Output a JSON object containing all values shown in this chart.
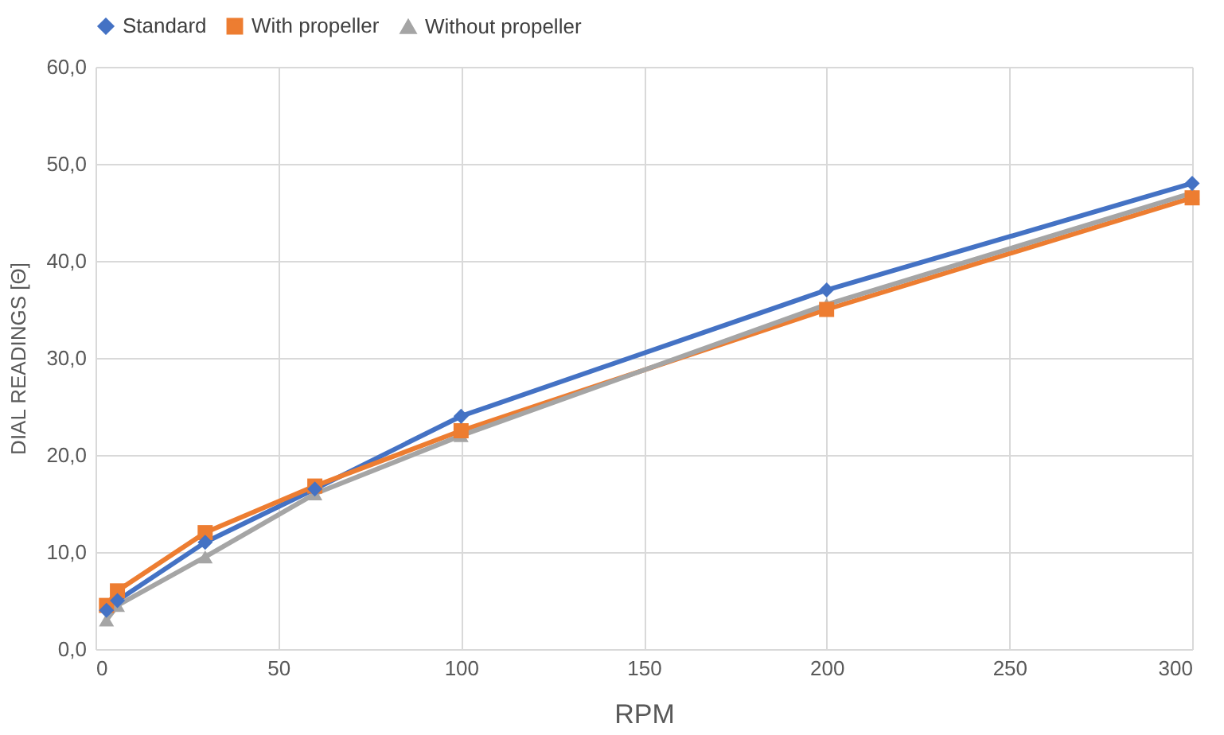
{
  "chart_data": {
    "type": "line",
    "xlabel": "RPM",
    "ylabel": "DIAL READINGS [Θ]",
    "x": [
      3,
      6,
      30,
      60,
      100,
      200,
      300
    ],
    "series": [
      {
        "name": "Standard",
        "color": "#4472c4",
        "marker": "diamond",
        "values": [
          4,
          5,
          11,
          16.5,
          24,
          37,
          48
        ]
      },
      {
        "name": "With propeller",
        "color": "#ed7d31",
        "marker": "square",
        "values": [
          4.5,
          6,
          12,
          16.8,
          22.5,
          35,
          46.5
        ]
      },
      {
        "name": "Without propeller",
        "color": "#a5a5a5",
        "marker": "triangle",
        "values": [
          3,
          4.5,
          9.5,
          16,
          22,
          35.5,
          47
        ]
      }
    ],
    "xlim": [
      0,
      300
    ],
    "xticks": [
      0,
      50,
      100,
      150,
      200,
      250,
      300
    ],
    "ylim": [
      0,
      60
    ],
    "yticks": [
      {
        "value": 0,
        "label": "0,0"
      },
      {
        "value": 10,
        "label": "10,0"
      },
      {
        "value": 20,
        "label": "20,0"
      },
      {
        "value": 30,
        "label": "30,0"
      },
      {
        "value": 40,
        "label": "40,0"
      },
      {
        "value": 50,
        "label": "50,0"
      },
      {
        "value": 60,
        "label": "60,0"
      }
    ],
    "grid": true,
    "legend": "top",
    "line_style": "solid"
  }
}
